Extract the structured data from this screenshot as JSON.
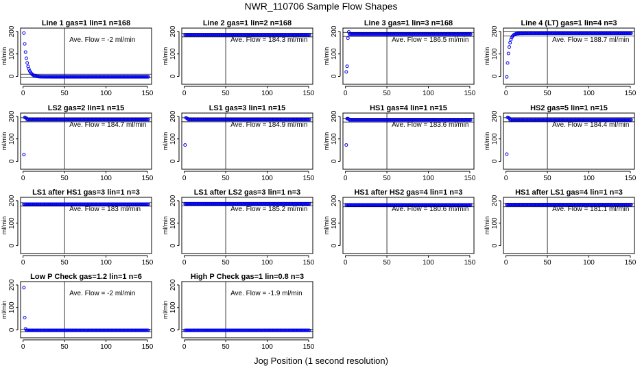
{
  "figure": {
    "title": "NWR_110706  Sample Flow Shapes",
    "xlabel": "Jog Position (1 second resolution)"
  },
  "colors": {
    "points": "#0000ee",
    "axis": "#000000"
  },
  "chart_data": [
    {
      "type": "scatter",
      "title": "Line 1 gas=1 lin=1 n=168",
      "ylabel": "ml/min",
      "annotation": "Ave. Flow =  -2  ml/min",
      "xlim": [
        -3,
        155
      ],
      "ylim": [
        -35,
        215
      ],
      "xticks": [
        0,
        50,
        100,
        150
      ],
      "yticks": [
        0,
        100,
        200
      ],
      "hlines": [
        10,
        -5
      ],
      "vline": 50,
      "series": [
        {
          "name": "flow",
          "shape": "decay",
          "start": 193,
          "end": -2,
          "tau": 3.5,
          "n": 151
        }
      ]
    },
    {
      "type": "scatter",
      "title": "Line 2 gas=1 lin=2 n=168",
      "ylabel": "ml/min",
      "annotation": "Ave. Flow =  184.3  ml/min",
      "xlim": [
        -3,
        155
      ],
      "ylim": [
        -35,
        215
      ],
      "xticks": [
        0,
        50,
        100,
        150
      ],
      "yticks": [
        0,
        100,
        200
      ],
      "hlines": [
        192,
        176
      ],
      "vline": 50,
      "series": [
        {
          "name": "flow",
          "shape": "flat",
          "level": 185,
          "n": 151
        }
      ]
    },
    {
      "type": "scatter",
      "title": "Line 3 gas=1 lin=3 n=168",
      "ylabel": "ml/min",
      "annotation": "Ave. Flow =  186.5  ml/min",
      "xlim": [
        -3,
        155
      ],
      "ylim": [
        -35,
        215
      ],
      "xticks": [
        0,
        50,
        100,
        150
      ],
      "yticks": [
        0,
        100,
        200
      ],
      "hlines": [
        196,
        178
      ],
      "vline": 50,
      "series": [
        {
          "name": "flow",
          "shape": "flat",
          "level": 188,
          "n": 151,
          "head": [
            [
              1,
              20
            ],
            [
              2,
              45
            ],
            [
              3,
              170
            ],
            [
              4,
              198
            ]
          ]
        }
      ]
    },
    {
      "type": "scatter",
      "title": "Line 4 (LT) gas=1 lin=4 n=3",
      "ylabel": "ml/min",
      "annotation": "Ave. Flow =  188.7  ml/min",
      "xlim": [
        -3,
        155
      ],
      "ylim": [
        -35,
        215
      ],
      "xticks": [
        0,
        50,
        100,
        150
      ],
      "yticks": [
        0,
        100,
        200
      ],
      "hlines": [
        200,
        180
      ],
      "vline": 50,
      "series": [
        {
          "name": "flow",
          "shape": "rise",
          "start": -2,
          "end": 192,
          "tau": 2.6,
          "n": 151
        }
      ]
    },
    {
      "type": "scatter",
      "title": "LS2 gas=2 lin=1 n=15",
      "ylabel": "ml/min",
      "annotation": "Ave. Flow =  184.7  ml/min",
      "xlim": [
        -3,
        155
      ],
      "ylim": [
        -35,
        215
      ],
      "xticks": [
        0,
        50,
        100,
        150
      ],
      "yticks": [
        0,
        100,
        200
      ],
      "hlines": [
        194,
        176
      ],
      "vline": 50,
      "series": [
        {
          "name": "flow",
          "shape": "flat",
          "level": 186,
          "n": 151,
          "head": [
            [
              1,
              30
            ],
            [
              2,
              196
            ],
            [
              3,
              194
            ],
            [
              4,
              192
            ]
          ]
        }
      ]
    },
    {
      "type": "scatter",
      "title": "LS1 gas=3 lin=1 n=15",
      "ylabel": "ml/min",
      "annotation": "Ave. Flow =  184.9  ml/min",
      "xlim": [
        -3,
        155
      ],
      "ylim": [
        -35,
        215
      ],
      "xticks": [
        0,
        50,
        100,
        150
      ],
      "yticks": [
        0,
        100,
        200
      ],
      "hlines": [
        194,
        176
      ],
      "vline": 50,
      "series": [
        {
          "name": "flow",
          "shape": "flat",
          "level": 186,
          "n": 151,
          "head": [
            [
              1,
              73
            ],
            [
              2,
              194
            ],
            [
              3,
              192
            ],
            [
              4,
              190
            ]
          ]
        }
      ]
    },
    {
      "type": "scatter",
      "title": "HS1 gas=4 lin=1 n=15",
      "ylabel": "ml/min",
      "annotation": "Ave. Flow =  183.6  ml/min",
      "xlim": [
        -3,
        155
      ],
      "ylim": [
        -35,
        215
      ],
      "xticks": [
        0,
        50,
        100,
        150
      ],
      "yticks": [
        0,
        100,
        200
      ],
      "hlines": [
        192,
        175
      ],
      "vline": 50,
      "series": [
        {
          "name": "flow",
          "shape": "flat",
          "level": 184,
          "n": 151,
          "head": [
            [
              1,
              73
            ],
            [
              2,
              190
            ],
            [
              3,
              190
            ],
            [
              4,
              188
            ]
          ]
        }
      ]
    },
    {
      "type": "scatter",
      "title": "HS2 gas=5 lin=1 n=15",
      "ylabel": "ml/min",
      "annotation": "Ave. Flow =  184.4  ml/min",
      "xlim": [
        -3,
        155
      ],
      "ylim": [
        -35,
        215
      ],
      "xticks": [
        0,
        50,
        100,
        150
      ],
      "yticks": [
        0,
        100,
        200
      ],
      "hlines": [
        194,
        176
      ],
      "vline": 50,
      "series": [
        {
          "name": "flow",
          "shape": "flat",
          "level": 185,
          "n": 151,
          "head": [
            [
              1,
              32
            ],
            [
              2,
              196
            ],
            [
              3,
              194
            ],
            [
              4,
              192
            ]
          ]
        }
      ]
    },
    {
      "type": "scatter",
      "title": "LS1 after HS1 gas=3 lin=1 n=3",
      "ylabel": "ml/min",
      "annotation": "Ave. Flow =  183  ml/min",
      "xlim": [
        -3,
        155
      ],
      "ylim": [
        -35,
        215
      ],
      "xticks": [
        0,
        50,
        100,
        150
      ],
      "yticks": [
        0,
        100,
        200
      ],
      "hlines": [
        191,
        176
      ],
      "vline": 50,
      "series": [
        {
          "name": "flow",
          "shape": "flat",
          "level": 184,
          "n": 151
        }
      ]
    },
    {
      "type": "scatter",
      "title": "LS1 after LS2 gas=3 lin=1 n=3",
      "ylabel": "ml/min",
      "annotation": "Ave. Flow =  185.2  ml/min",
      "xlim": [
        -3,
        155
      ],
      "ylim": [
        -35,
        215
      ],
      "xticks": [
        0,
        50,
        100,
        150
      ],
      "yticks": [
        0,
        100,
        200
      ],
      "hlines": [
        193,
        177
      ],
      "vline": 50,
      "series": [
        {
          "name": "flow",
          "shape": "flat",
          "level": 186,
          "n": 151
        }
      ]
    },
    {
      "type": "scatter",
      "title": "HS1 after HS2 gas=4 lin=1 n=3",
      "ylabel": "ml/min",
      "annotation": "Ave. Flow =  180.6  ml/min",
      "xlim": [
        -3,
        155
      ],
      "ylim": [
        -35,
        215
      ],
      "xticks": [
        0,
        50,
        100,
        150
      ],
      "yticks": [
        0,
        100,
        200
      ],
      "hlines": [
        188,
        173
      ],
      "vline": 50,
      "series": [
        {
          "name": "flow",
          "shape": "flat",
          "level": 181,
          "n": 151
        }
      ]
    },
    {
      "type": "scatter",
      "title": "HS1 after LS1 gas=4 lin=1 n=3",
      "ylabel": "ml/min",
      "annotation": "Ave. Flow =  181.1  ml/min",
      "xlim": [
        -3,
        155
      ],
      "ylim": [
        -35,
        215
      ],
      "xticks": [
        0,
        50,
        100,
        150
      ],
      "yticks": [
        0,
        100,
        200
      ],
      "hlines": [
        189,
        173
      ],
      "vline": 50,
      "series": [
        {
          "name": "flow",
          "shape": "flat",
          "level": 182,
          "n": 151
        }
      ]
    },
    {
      "type": "scatter",
      "title": "Low P Check gas=1.2 lin=1 n=6",
      "ylabel": "ml/min",
      "annotation": "Ave. Flow =  -2  ml/min",
      "xlim": [
        -3,
        155
      ],
      "ylim": [
        -35,
        215
      ],
      "xticks": [
        0,
        50,
        100,
        150
      ],
      "yticks": [
        0,
        100,
        200
      ],
      "hlines": [
        3,
        -8
      ],
      "vline": 50,
      "series": [
        {
          "name": "flow",
          "shape": "flat",
          "level": -2,
          "n": 151,
          "head": [
            [
              1,
              188
            ],
            [
              2,
              55
            ],
            [
              3,
              5
            ],
            [
              4,
              -1
            ]
          ]
        }
      ]
    },
    {
      "type": "scatter",
      "title": "High P Check gas=1 lin=0.8 n=3",
      "ylabel": "ml/min",
      "annotation": "Ave. Flow =  -1.9  ml/min",
      "xlim": [
        -3,
        155
      ],
      "ylim": [
        -35,
        215
      ],
      "xticks": [
        0,
        50,
        100,
        150
      ],
      "yticks": [
        0,
        100,
        200
      ],
      "hlines": [
        3,
        -7
      ],
      "vline": 50,
      "series": [
        {
          "name": "flow",
          "shape": "flat",
          "level": -2,
          "n": 151
        }
      ]
    }
  ]
}
